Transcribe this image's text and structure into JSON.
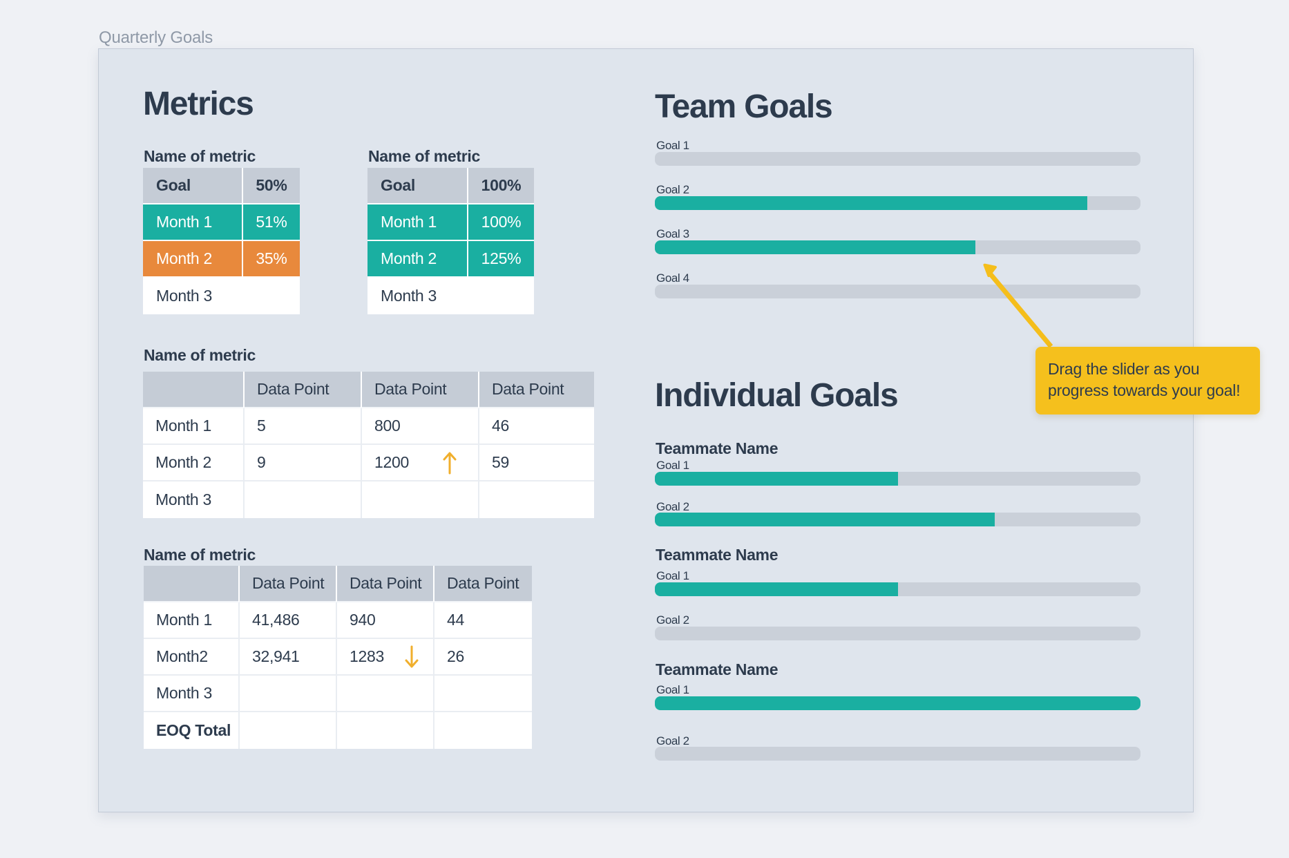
{
  "board": {
    "title": "Quarterly Goals"
  },
  "colors": {
    "accent_teal": "#1aafa1",
    "accent_orange": "#e8893c",
    "accent_yellow": "#f5c01d",
    "text_dark": "#2d3b4d",
    "track_gray": "#cad0d9",
    "header_gray": "#c5ccd6",
    "panel_bg": "#dfe5ed"
  },
  "metrics": {
    "heading": "Metrics",
    "goal_tables": [
      {
        "title": "Name of metric",
        "header_label": "Goal",
        "header_value": "50%",
        "rows": [
          {
            "label": "Month 1",
            "value": "51%",
            "status": "on-track"
          },
          {
            "label": "Month 2",
            "value": "35%",
            "status": "behind"
          },
          {
            "label": "Month 3",
            "value": "",
            "status": "pending"
          }
        ]
      },
      {
        "title": "Name of metric",
        "header_label": "Goal",
        "header_value": "100%",
        "rows": [
          {
            "label": "Month 1",
            "value": "100%",
            "status": "on-track"
          },
          {
            "label": "Month 2",
            "value": "125%",
            "status": "on-track"
          },
          {
            "label": "Month 3",
            "value": "",
            "status": "pending"
          }
        ]
      }
    ],
    "data_tables": [
      {
        "title": "Name of metric",
        "columns": [
          "Data Point",
          "Data Point",
          "Data Point"
        ],
        "rows": [
          {
            "label": "Month 1",
            "values": [
              "5",
              "800",
              "46"
            ],
            "trends": [
              "",
              "",
              ""
            ]
          },
          {
            "label": "Month 2",
            "values": [
              "9",
              "1200",
              "59"
            ],
            "trends": [
              "",
              "up",
              ""
            ]
          },
          {
            "label": "Month 3",
            "values": [
              "",
              "",
              ""
            ],
            "trends": [
              "",
              "",
              ""
            ]
          }
        ]
      },
      {
        "title": "Name of metric",
        "columns": [
          "Data Point",
          "Data Point",
          "Data Point"
        ],
        "rows": [
          {
            "label": "Month 1",
            "values": [
              "41,486",
              "940",
              "44"
            ],
            "trends": [
              "",
              "",
              ""
            ]
          },
          {
            "label": "Month2",
            "values": [
              "32,941",
              "1283",
              "26"
            ],
            "trends": [
              "",
              "down",
              ""
            ]
          },
          {
            "label": "Month 3",
            "values": [
              "",
              "",
              ""
            ],
            "trends": [
              "",
              "",
              ""
            ]
          },
          {
            "label": "EOQ Total",
            "values": [
              "",
              "",
              ""
            ],
            "trends": [
              "",
              "",
              ""
            ]
          }
        ]
      }
    ]
  },
  "team_goals": {
    "heading": "Team Goals",
    "goals": [
      {
        "label": "Goal 1",
        "progress_pct": 0
      },
      {
        "label": "Goal 2",
        "progress_pct": 89
      },
      {
        "label": "Goal 3",
        "progress_pct": 66
      },
      {
        "label": "Goal 4",
        "progress_pct": 0
      }
    ]
  },
  "individual_goals": {
    "heading": "Individual Goals",
    "teammates": [
      {
        "name": "Teammate Name",
        "goals": [
          {
            "label": "Goal 1",
            "progress_pct": 50
          },
          {
            "label": "Goal 2",
            "progress_pct": 70
          }
        ]
      },
      {
        "name": "Teammate Name",
        "goals": [
          {
            "label": "Goal 1",
            "progress_pct": 50
          },
          {
            "label": "Goal 2",
            "progress_pct": 0
          }
        ]
      },
      {
        "name": "Teammate Name",
        "goals": [
          {
            "label": "Goal 1",
            "progress_pct": 100
          },
          {
            "label": "Goal 2",
            "progress_pct": 0
          }
        ]
      }
    ]
  },
  "annotation": {
    "text": "Drag the slider as you progress towards your goal!"
  }
}
